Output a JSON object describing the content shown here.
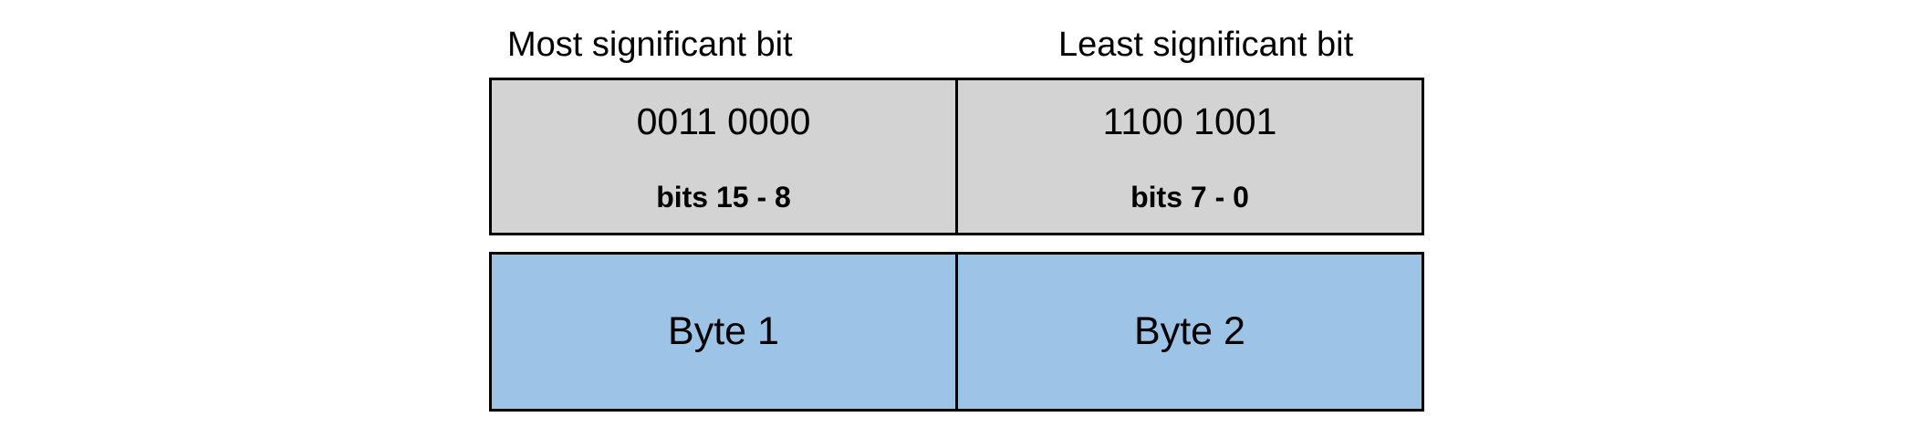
{
  "labels": {
    "msb": "Most significant bit",
    "lsb": "Least significant bit"
  },
  "bits_row": [
    {
      "value": "0011 0000",
      "range": "bits 15 - 8"
    },
    {
      "value": "1100 1001",
      "range": "bits 7 - 0"
    }
  ],
  "bytes_row": [
    {
      "label": "Byte 1"
    },
    {
      "label": "Byte 2"
    }
  ],
  "colors": {
    "bits_fill": "#d3d3d3",
    "bytes_fill": "#9dc3e6",
    "border": "#000000"
  }
}
